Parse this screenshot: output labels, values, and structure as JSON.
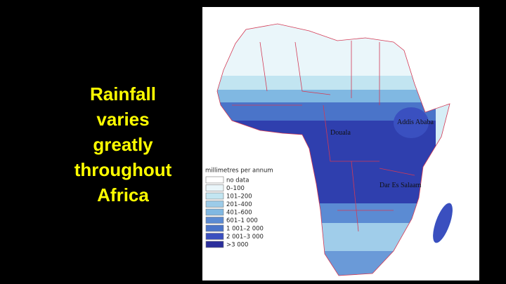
{
  "slide": {
    "heading_lines": [
      "Rainfall",
      "varies",
      "greatly",
      "throughout",
      "Africa"
    ]
  },
  "map": {
    "cities": [
      "Douala",
      "Addis Ababa",
      "Dar Es Salaam"
    ],
    "legend": {
      "title": "millimetres per annum",
      "entries": [
        "no data",
        "0–100",
        "101–200",
        "201–400",
        "401–600",
        "601–1 000",
        "1 001–2 000",
        "2 001–3 000",
        ">3 000"
      ]
    }
  }
}
